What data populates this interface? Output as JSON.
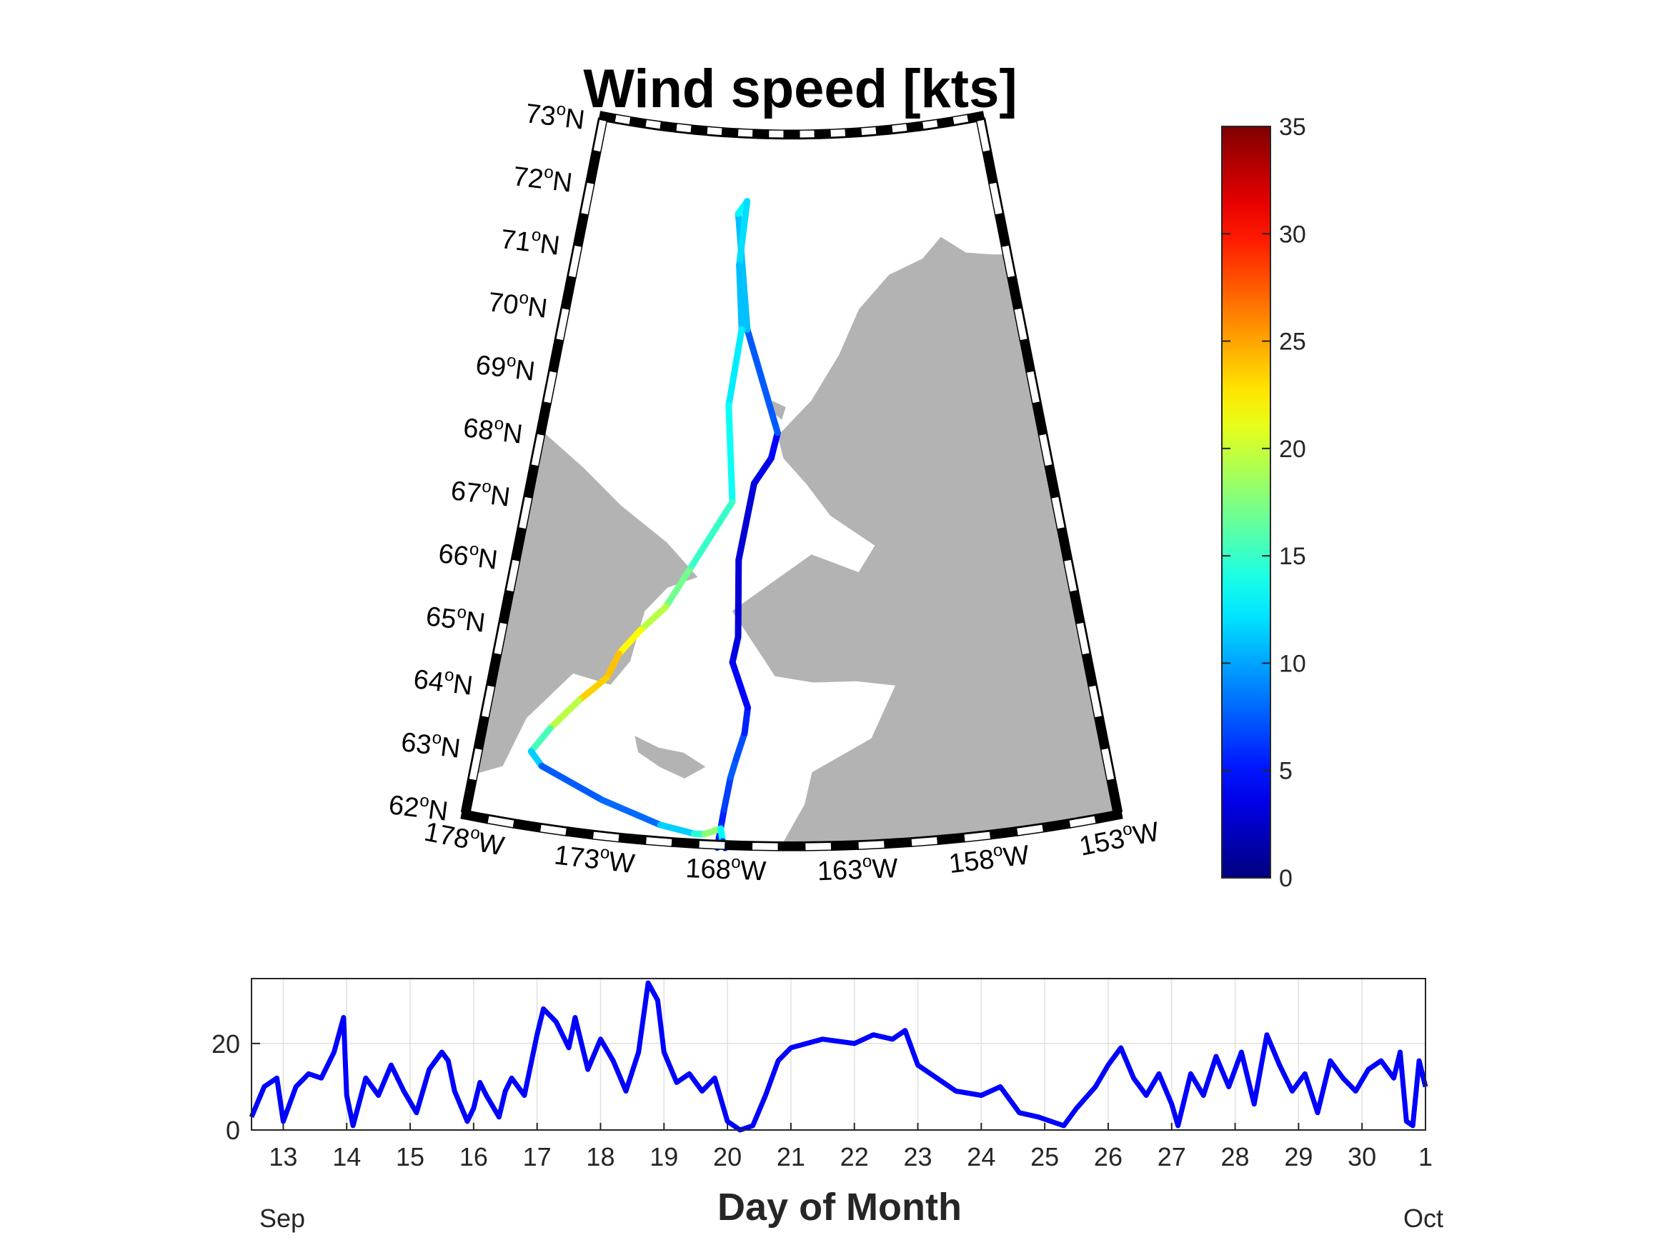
{
  "chart_data": [
    {
      "type": "scatter",
      "title": "Wind speed [kts]",
      "projection": "conic",
      "lat_ticks": [
        "62",
        "63",
        "64",
        "65",
        "66",
        "67",
        "68",
        "69",
        "70",
        "71",
        "72",
        "73"
      ],
      "lat_suffix": "N",
      "lon_ticks": [
        "178",
        "173",
        "168",
        "163",
        "158",
        "153"
      ],
      "lon_suffix": "W",
      "degree_symbol": "o",
      "land_color": "#b3b3b3",
      "colormap": "jet",
      "colorbar_ticks": [
        "0",
        "5",
        "10",
        "15",
        "20",
        "25",
        "30",
        "35"
      ],
      "clim": [
        0,
        35
      ],
      "ship_track": {
        "lon": [
          -168.3,
          -168.1,
          -167.9,
          -167.7,
          -167.4,
          -167.3,
          -168.0,
          -167.8,
          -167.9,
          -167.3,
          -166.5,
          -166.2,
          -167.9,
          -168.7,
          -168.2,
          -168.5,
          -168.2,
          -168.7,
          -168.3,
          -170.1,
          -171.0,
          -172.0,
          -172.8,
          -173.2,
          -174.2,
          -175.2,
          -175.8,
          -175.3,
          -172.8,
          -170.5,
          -169.2,
          -168.8,
          -168.2,
          -168.1,
          -168.0
        ],
        "lat": [
          61.9,
          62.5,
          63.0,
          63.3,
          63.7,
          64.1,
          64.8,
          65.2,
          66.4,
          67.6,
          68.0,
          68.4,
          70.0,
          71.8,
          72.0,
          71.0,
          70.0,
          68.8,
          67.3,
          66.2,
          65.6,
          65.2,
          64.8,
          64.4,
          64.0,
          63.5,
          63.1,
          62.9,
          62.5,
          62.2,
          62.1,
          62.1,
          62.2,
          62.0,
          61.9
        ],
        "wind": [
          5,
          6,
          7,
          8,
          6,
          5,
          4,
          3,
          3,
          3,
          4,
          5,
          10,
          12,
          14,
          10,
          12,
          13,
          14,
          16,
          18,
          21,
          23,
          25,
          22,
          17,
          14,
          9,
          6,
          10,
          13,
          16,
          20,
          6,
          5
        ]
      }
    },
    {
      "type": "line",
      "xlabel": "Day of Month",
      "month_start": "Sep",
      "month_end": "Oct",
      "x_ticks": [
        "13",
        "14",
        "15",
        "16",
        "17",
        "18",
        "19",
        "20",
        "21",
        "22",
        "23",
        "24",
        "25",
        "26",
        "27",
        "28",
        "29",
        "30",
        "1"
      ],
      "y_ticks": [
        "0",
        "20"
      ],
      "xlim": [
        12.5,
        31
      ],
      "ylim": [
        0,
        35
      ],
      "grid": true,
      "line_color": "#0000ff",
      "x": [
        12.5,
        12.7,
        12.9,
        13.0,
        13.2,
        13.4,
        13.6,
        13.8,
        13.95,
        14.0,
        14.1,
        14.3,
        14.5,
        14.7,
        14.9,
        15.1,
        15.3,
        15.5,
        15.6,
        15.7,
        15.9,
        16.0,
        16.1,
        16.2,
        16.4,
        16.5,
        16.6,
        16.8,
        17.0,
        17.1,
        17.3,
        17.5,
        17.6,
        17.8,
        18.0,
        18.2,
        18.4,
        18.6,
        18.75,
        18.9,
        19.0,
        19.2,
        19.4,
        19.6,
        19.8,
        20.0,
        20.2,
        20.4,
        20.6,
        20.8,
        21.0,
        21.5,
        22.0,
        22.3,
        22.6,
        22.8,
        23.0,
        23.3,
        23.6,
        24.0,
        24.3,
        24.6,
        24.9,
        25.1,
        25.3,
        25.5,
        25.8,
        26.0,
        26.2,
        26.4,
        26.6,
        26.8,
        27.0,
        27.1,
        27.3,
        27.5,
        27.7,
        27.9,
        28.1,
        28.3,
        28.5,
        28.7,
        28.9,
        29.1,
        29.3,
        29.5,
        29.7,
        29.9,
        30.1,
        30.3,
        30.5,
        30.6,
        30.7,
        30.8,
        30.9,
        31.0
      ],
      "y": [
        3,
        10,
        12,
        2,
        10,
        13,
        12,
        18,
        26,
        8,
        1,
        12,
        8,
        15,
        9,
        4,
        14,
        18,
        16,
        9,
        2,
        5,
        11,
        8,
        3,
        9,
        12,
        8,
        22,
        28,
        25,
        19,
        26,
        14,
        21,
        16,
        9,
        18,
        34,
        30,
        18,
        11,
        13,
        9,
        12,
        2,
        0,
        1,
        8,
        16,
        19,
        21,
        20,
        22,
        21,
        23,
        15,
        12,
        9,
        8,
        10,
        4,
        3,
        2,
        1,
        5,
        10,
        15,
        19,
        12,
        8,
        13,
        6,
        1,
        13,
        8,
        17,
        10,
        18,
        6,
        22,
        15,
        9,
        13,
        4,
        16,
        12,
        9,
        14,
        16,
        12,
        18,
        2,
        1,
        16,
        10
      ]
    }
  ]
}
